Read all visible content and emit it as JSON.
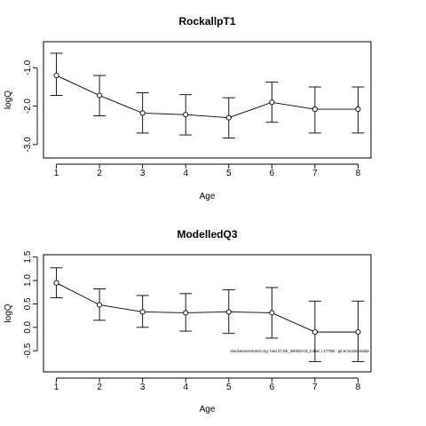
{
  "chart_data": [
    {
      "type": "line",
      "title": "RockallpT1",
      "xlabel": "Age",
      "ylabel": "logQ",
      "x": [
        1,
        2,
        3,
        4,
        5,
        6,
        7,
        8
      ],
      "xticks": [
        "1",
        "2",
        "3",
        "4",
        "5",
        "6",
        "7",
        "8"
      ],
      "xlim": [
        0.7,
        8.3
      ],
      "y": [
        -1.2,
        -1.72,
        -2.18,
        -2.22,
        -2.3,
        -1.9,
        -2.08,
        -2.08
      ],
      "lower": [
        -1.72,
        -2.25,
        -2.7,
        -2.75,
        -2.83,
        -2.42,
        -2.7,
        -2.7
      ],
      "upper": [
        -0.62,
        -1.2,
        -1.65,
        -1.7,
        -1.78,
        -1.37,
        -1.5,
        -1.5
      ],
      "yticks": [
        -3.0,
        -2.0,
        -1.0
      ],
      "ytick_labels": [
        "-3.0",
        "-2.0",
        "-1.0"
      ],
      "ylim": [
        -3.35,
        -0.32
      ],
      "note": ""
    },
    {
      "type": "line",
      "title": "ModelledQ3",
      "xlabel": "Age",
      "ylabel": "logQ",
      "x": [
        1,
        2,
        3,
        4,
        5,
        6,
        7,
        8
      ],
      "xticks": [
        "1",
        "2",
        "3",
        "4",
        "5",
        "6",
        "7",
        "8"
      ],
      "xlim": [
        0.7,
        8.3
      ],
      "y": [
        0.95,
        0.48,
        0.33,
        0.31,
        0.33,
        0.31,
        -0.1,
        -0.1
      ],
      "lower": [
        0.63,
        0.15,
        0.0,
        -0.08,
        -0.13,
        -0.23,
        -0.73,
        -0.73
      ],
      "upper": [
        1.27,
        0.82,
        0.68,
        0.72,
        0.8,
        0.85,
        0.56,
        0.56
      ],
      "yticks": [
        -0.5,
        0.0,
        0.5,
        1.0,
        1.5
      ],
      "ytick_labels": [
        "-0.5",
        "0.0",
        "0.5",
        "1.0",
        "1.5"
      ],
      "ylim": [
        -0.95,
        1.55
      ],
      "note": "stockassessment.org; had.27.6b_WKBGAD_initial; r.17768 ; git:ec2c2a0c6dde"
    }
  ]
}
